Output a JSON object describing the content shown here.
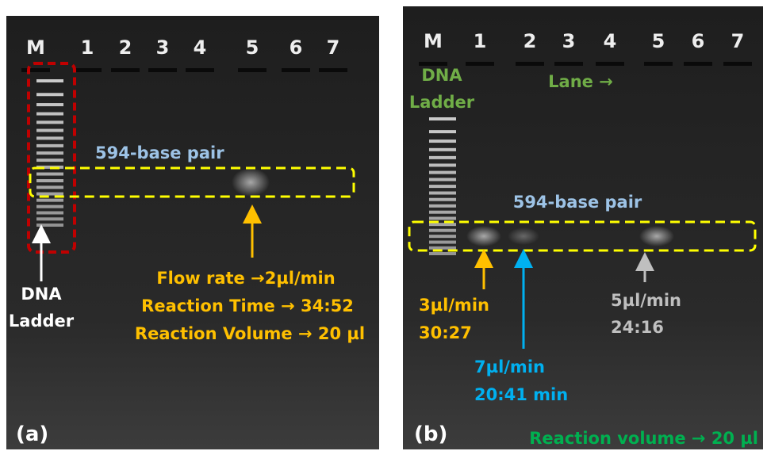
{
  "panels": [
    {
      "label": "(a)",
      "lanes": [
        "M",
        "1",
        "2",
        "3",
        "4",
        "5",
        "6",
        "7"
      ],
      "ladder_label": [
        "DNA",
        "Ladder"
      ],
      "band_label": "594-base pair",
      "annotations": [
        "Flow rate →2µl/min",
        "Reaction Time → 34:52",
        "Reaction Volume → 20 µl"
      ]
    },
    {
      "label": "(b)",
      "lanes": [
        "M",
        "1",
        "2",
        "3",
        "4",
        "5",
        "6",
        "7"
      ],
      "ladder_label": [
        "DNA",
        "Ladder"
      ],
      "lane_label": "Lane →",
      "band_label": "594-base pair",
      "annotations": [
        [
          "3µl/min",
          "30:27"
        ],
        [
          "7µl/min",
          "20:41 min"
        ],
        [
          "5µl/min",
          "24:16"
        ]
      ],
      "footer": "Reaction volume → 20 µl"
    }
  ]
}
